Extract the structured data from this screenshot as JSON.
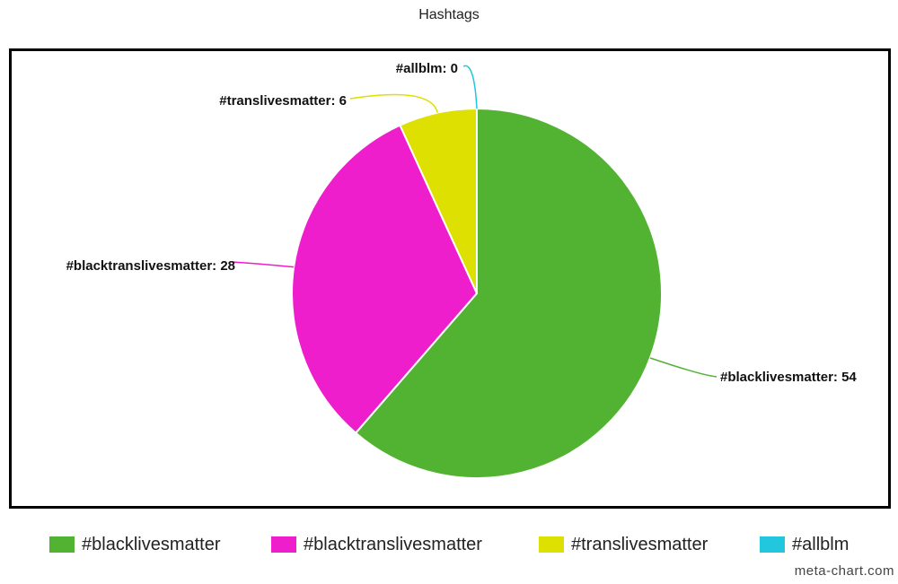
{
  "chart_data": {
    "type": "pie",
    "title": "Hashtags",
    "categories": [
      "#blacklivesmatter",
      "#blacktranslivesmatter",
      "#translivesmatter",
      "#allblm"
    ],
    "values": [
      54,
      28,
      6,
      0
    ],
    "slice_labels": [
      "#blacklivesmatter: 54",
      "#blacktranslivesmatter: 28",
      "#translivesmatter: 6",
      "#allblm: 0"
    ],
    "colors": [
      "#52b232",
      "#ee1ecd",
      "#dde000",
      "#22c7dd"
    ],
    "legend_position": "bottom"
  },
  "watermark": "meta-chart.com"
}
